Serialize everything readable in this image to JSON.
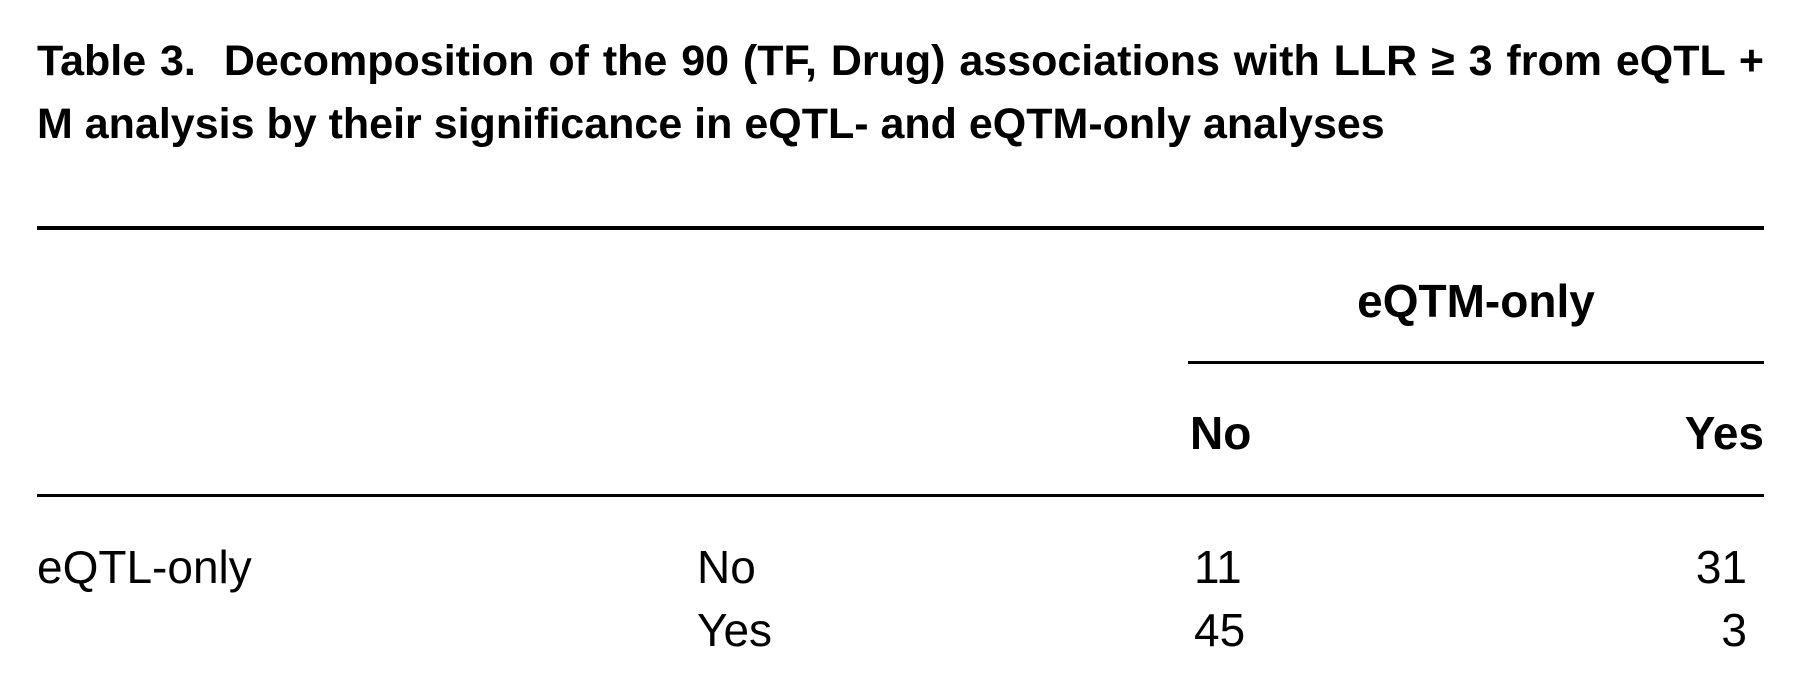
{
  "caption": {
    "label": "Table 3.",
    "text": "Decomposition of the 90 (TF, Drug) associations with LLR ≥ 3 from eQTL + M analysis by their significance in eQTL- and eQTM-only analyses"
  },
  "table": {
    "column_group": "eQTM-only",
    "columns": [
      "No",
      "Yes"
    ],
    "row_group": "eQTL-only",
    "rows": [
      {
        "label": "No",
        "values": [
          11,
          31
        ]
      },
      {
        "label": "Yes",
        "values": [
          45,
          3
        ]
      }
    ]
  }
}
